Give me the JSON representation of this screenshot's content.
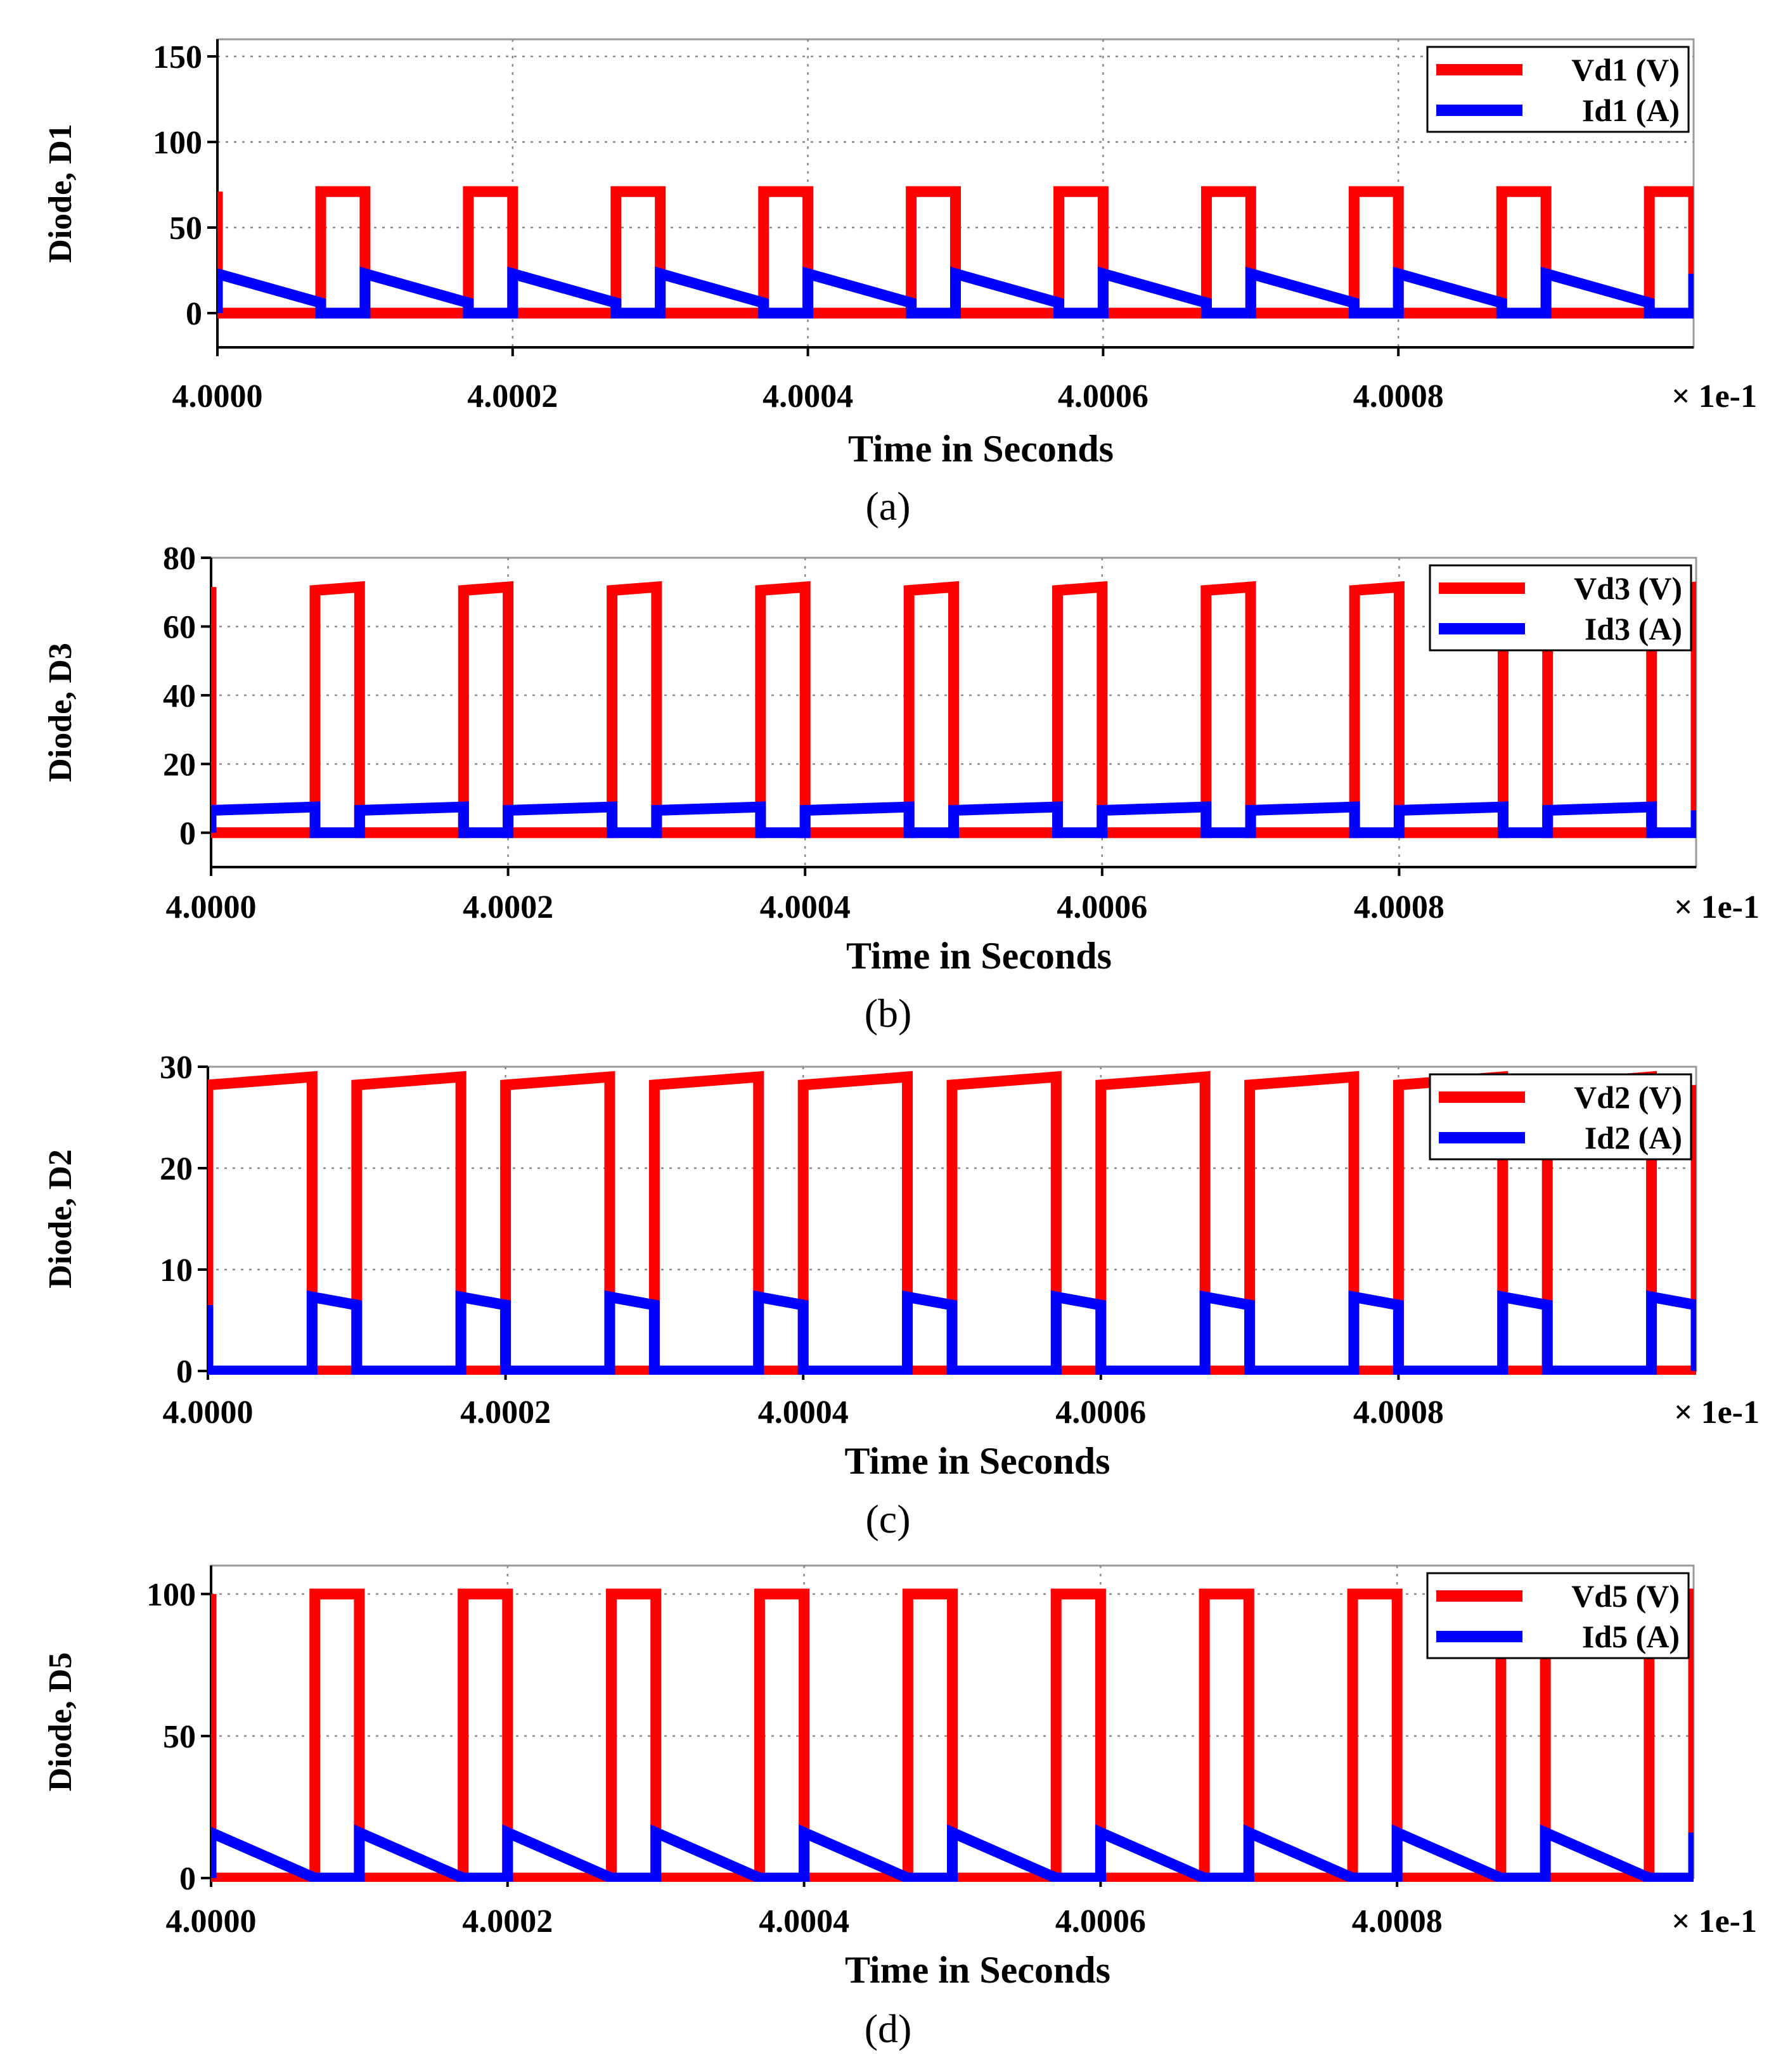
{
  "chart_data": [
    {
      "id": "a",
      "type": "line",
      "caption": "(a)",
      "ylabel": "Diode, D1",
      "xlabel": "Time in Seconds",
      "x_multiplier": "× 1e-1",
      "x_ticks": [
        "4.0000",
        "4.0002",
        "4.0004",
        "4.0006",
        "4.0008"
      ],
      "xlim": [
        4.0,
        4.001
      ],
      "ylim": [
        -20,
        160
      ],
      "y_ticks": [
        0,
        50,
        100,
        150
      ],
      "legend": [
        "Vd1 (V)",
        "Id1 (A)"
      ],
      "legend_position": "top-right",
      "waveform": {
        "period": 0.0001,
        "off_start": 7e-05,
        "off_end": 0.0001,
        "v_off_low": 71,
        "v_off_high": 71,
        "i_on_start": 23,
        "i_on_end": 6
      },
      "series": [
        {
          "name": "Vd1 (V)",
          "color": "#ff0000",
          "values_desc": "0 V while conducting, 71 V during blocking interval"
        },
        {
          "name": "Id1 (A)",
          "color": "#0000ff",
          "values_desc": "ramps 23 A to 6 A while conducting, 0 A while blocking"
        }
      ]
    },
    {
      "id": "b",
      "type": "line",
      "caption": "(b)",
      "ylabel": "Diode, D3",
      "xlabel": "Time in Seconds",
      "x_multiplier": "× 1e-1",
      "x_ticks": [
        "4.0000",
        "4.0002",
        "4.0004",
        "4.0006",
        "4.0008"
      ],
      "xlim": [
        4.0,
        4.001
      ],
      "ylim": [
        -10,
        80
      ],
      "y_ticks": [
        0,
        20,
        40,
        60,
        80
      ],
      "legend": [
        "Vd3 (V)",
        "Id3 (A)"
      ],
      "legend_position": "top-right",
      "waveform": {
        "period": 0.0001,
        "off_start": 7e-05,
        "off_end": 0.0001,
        "v_off_low": 70.5,
        "v_off_high": 71.5,
        "i_on_start": 6.5,
        "i_on_end": 7.5
      },
      "series": [
        {
          "name": "Vd3 (V)",
          "color": "#ff0000",
          "values_desc": "0 V while conducting, ~71 V during blocking interval"
        },
        {
          "name": "Id3 (A)",
          "color": "#0000ff",
          "values_desc": "rises 6.5 A to 7.5 A while conducting, 0 A while blocking"
        }
      ]
    },
    {
      "id": "c",
      "type": "line",
      "caption": "(c)",
      "ylabel": "Diode, D2",
      "xlabel": "Time in Seconds",
      "x_multiplier": "× 1e-1",
      "x_ticks": [
        "4.0000",
        "4.0002",
        "4.0004",
        "4.0006",
        "4.0008"
      ],
      "xlim": [
        4.0,
        4.001
      ],
      "ylim": [
        0,
        30
      ],
      "y_ticks": [
        0,
        10,
        20,
        30
      ],
      "legend": [
        "Vd2 (V)",
        "Id2 (A)"
      ],
      "legend_position": "top-right",
      "waveform": {
        "period": 0.0001,
        "on_start": 7e-05,
        "on_end": 0.0001,
        "v_off_low": 28.2,
        "v_off_high": 29.0,
        "i_on_start": 7.3,
        "i_on_end": 6.5
      },
      "series": [
        {
          "name": "Vd2 (V)",
          "color": "#ff0000",
          "values_desc": "28.2 V rising to 29 V while blocking, 0 V while conducting"
        },
        {
          "name": "Id2 (A)",
          "color": "#0000ff",
          "values_desc": "7.3 A falling to 6.5 A while conducting, 0 A while blocking"
        }
      ]
    },
    {
      "id": "d",
      "type": "line",
      "caption": "(d)",
      "ylabel": "Diode, D5",
      "xlabel": "Time in Seconds",
      "x_multiplier": "× 1e-1",
      "x_ticks": [
        "4.0000",
        "4.0002",
        "4.0004",
        "4.0006",
        "4.0008"
      ],
      "xlim": [
        4.0,
        4.001
      ],
      "ylim": [
        0,
        110
      ],
      "y_ticks": [
        0,
        50,
        100
      ],
      "legend": [
        "Vd5 (V)",
        "Id5 (A)"
      ],
      "legend_position": "top-right",
      "waveform": {
        "period": 0.0001,
        "off_start": 7e-05,
        "off_end": 0.0001,
        "v_off_low": 100,
        "v_off_high": 100,
        "i_on_start": 16,
        "i_on_end": 0
      },
      "series": [
        {
          "name": "Vd5 (V)",
          "color": "#ff0000",
          "values_desc": "0 V while conducting, 100 V during blocking interval"
        },
        {
          "name": "Id5 (A)",
          "color": "#0000ff",
          "values_desc": "ramps 16 A to 0 A while conducting, 0 A while blocking"
        }
      ]
    }
  ]
}
